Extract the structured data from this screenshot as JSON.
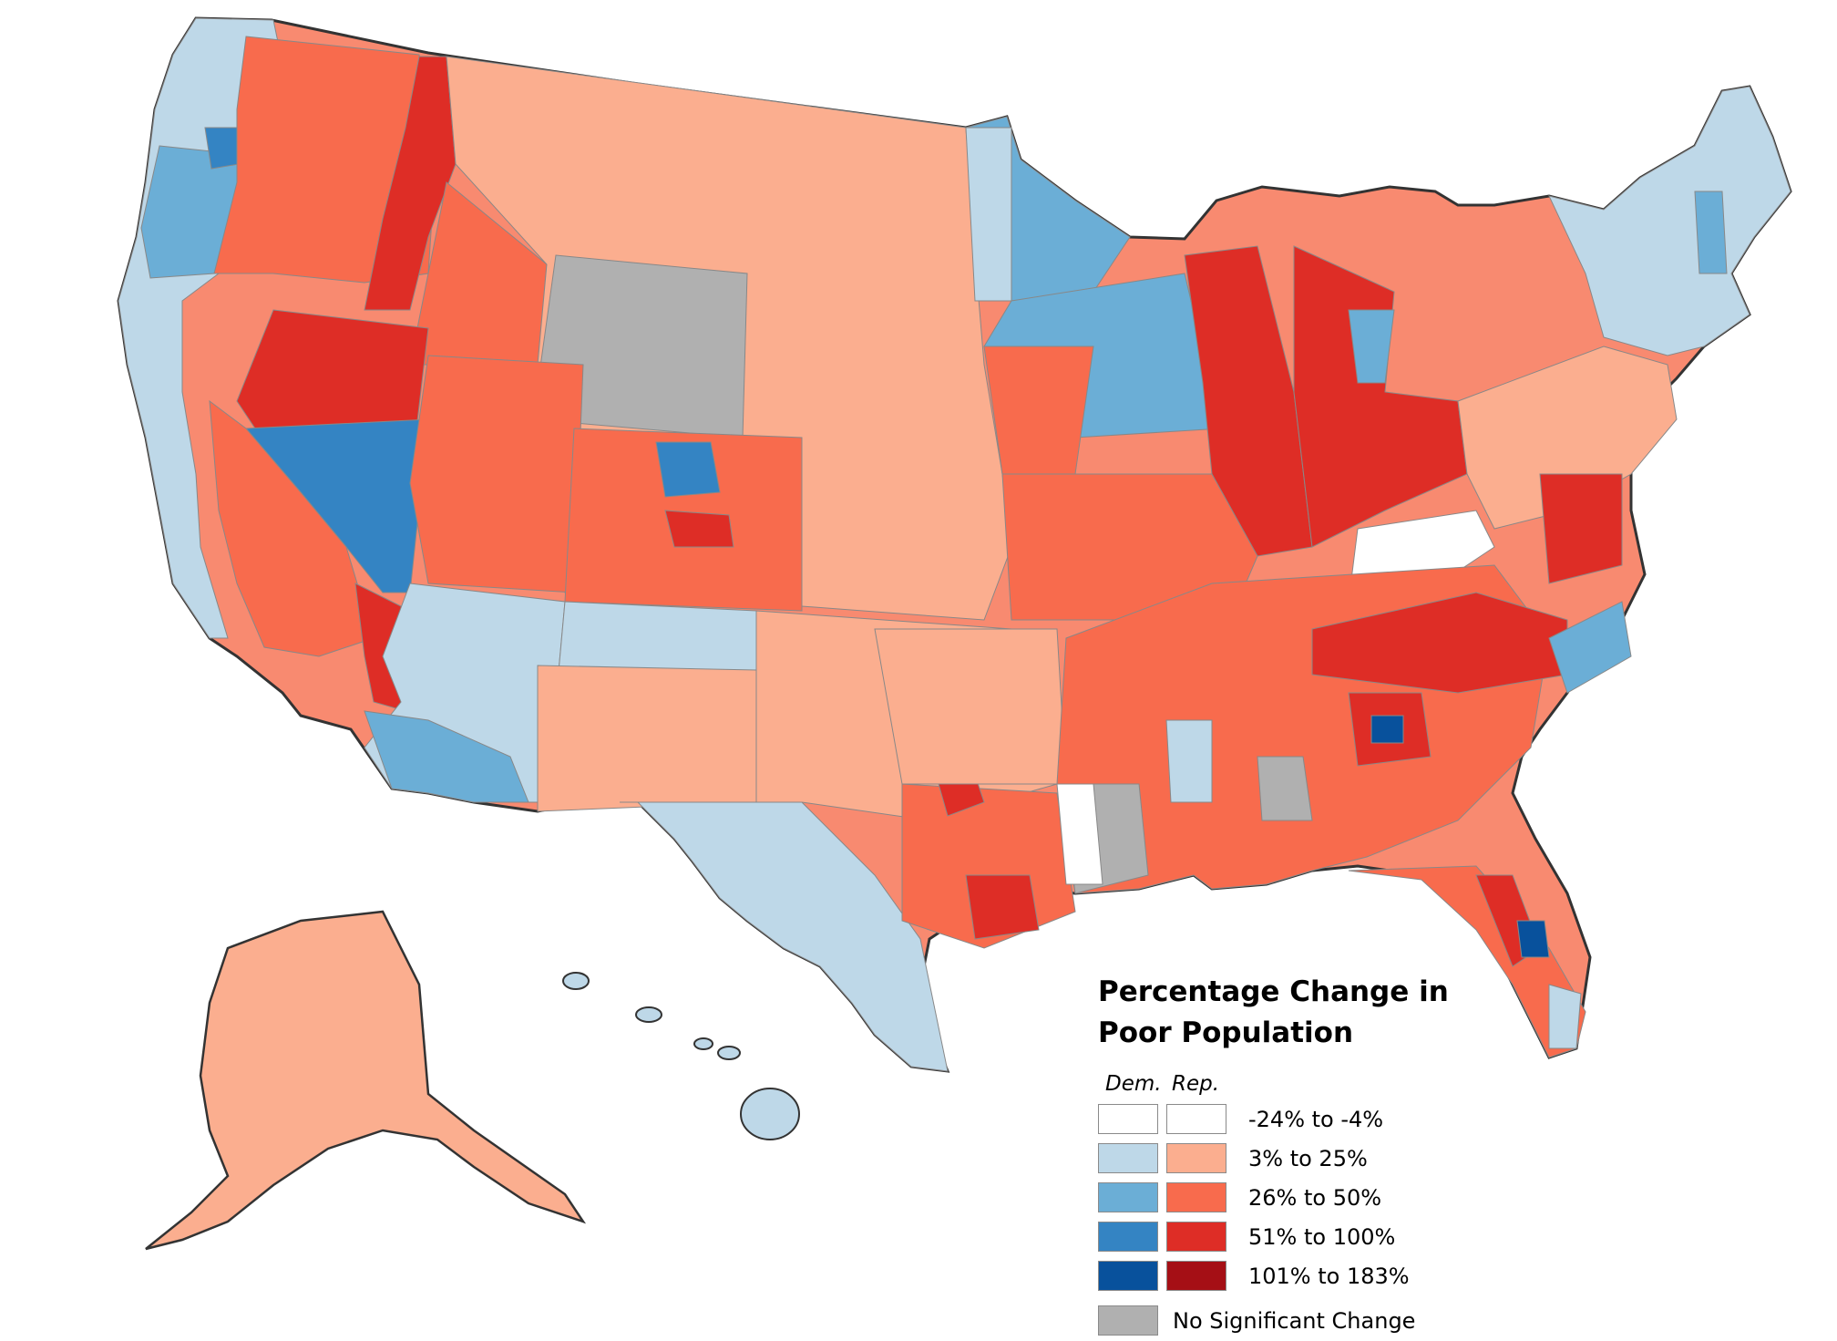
{
  "legend": {
    "title": "Percentage Change in Poor Population",
    "title_line1": "Percentage Change in",
    "title_line2": "Poor Population",
    "dem_header": "Dem.",
    "rep_header": "Rep.",
    "ranges": [
      {
        "label": "-24% to -4%",
        "dem_color": "#ffffff",
        "rep_color": "#ffffff"
      },
      {
        "label": "3% to 25%",
        "dem_color": "#bed8e8",
        "rep_color": "#fbae8f"
      },
      {
        "label": "26% to 50%",
        "dem_color": "#6baed6",
        "rep_color": "#f86b4d"
      },
      {
        "label": "51% to 100%",
        "dem_color": "#3484c3",
        "rep_color": "#de2d26"
      },
      {
        "label": "101% to 183%",
        "dem_color": "#08519c",
        "rep_color": "#a50f15"
      }
    ],
    "no_change": {
      "label": "No Significant Change",
      "color": "#b0b0b0"
    }
  },
  "map": {
    "water_color": "#ffffff",
    "border_color": "#333333",
    "regions": [
      {
        "name": "west-coast-north",
        "category": "dem-2"
      },
      {
        "name": "oregon-coast",
        "category": "dem-3"
      },
      {
        "name": "inland-northwest",
        "category": "rep-3"
      },
      {
        "name": "idaho-west",
        "category": "rep-4"
      },
      {
        "name": "montana",
        "category": "rep-2"
      },
      {
        "name": "wyoming",
        "category": "no-change"
      },
      {
        "name": "nevada-north",
        "category": "rep-4"
      },
      {
        "name": "nevada-south",
        "category": "dem-4"
      },
      {
        "name": "arizona",
        "category": "dem-2"
      },
      {
        "name": "california-coast",
        "category": "dem-2"
      },
      {
        "name": "california-central",
        "category": "rep-3"
      },
      {
        "name": "utah",
        "category": "rep-3"
      },
      {
        "name": "colorado",
        "category": "rep-3"
      },
      {
        "name": "new-mexico",
        "category": "dem-2"
      },
      {
        "name": "texas-west",
        "category": "dem-2"
      },
      {
        "name": "great-plains",
        "category": "rep-2"
      },
      {
        "name": "minnesota",
        "category": "dem-3"
      },
      {
        "name": "midwest",
        "category": "rep-4"
      },
      {
        "name": "midwest-east",
        "category": "rep-3"
      },
      {
        "name": "northeast",
        "category": "dem-2"
      },
      {
        "name": "mid-atlantic",
        "category": "rep-2"
      },
      {
        "name": "southeast",
        "category": "rep-3"
      },
      {
        "name": "mississippi-delta",
        "category": "no-change"
      },
      {
        "name": "florida",
        "category": "rep-4"
      },
      {
        "name": "alaska",
        "category": "rep-2"
      },
      {
        "name": "hawaii",
        "category": "dem-2"
      }
    ]
  }
}
